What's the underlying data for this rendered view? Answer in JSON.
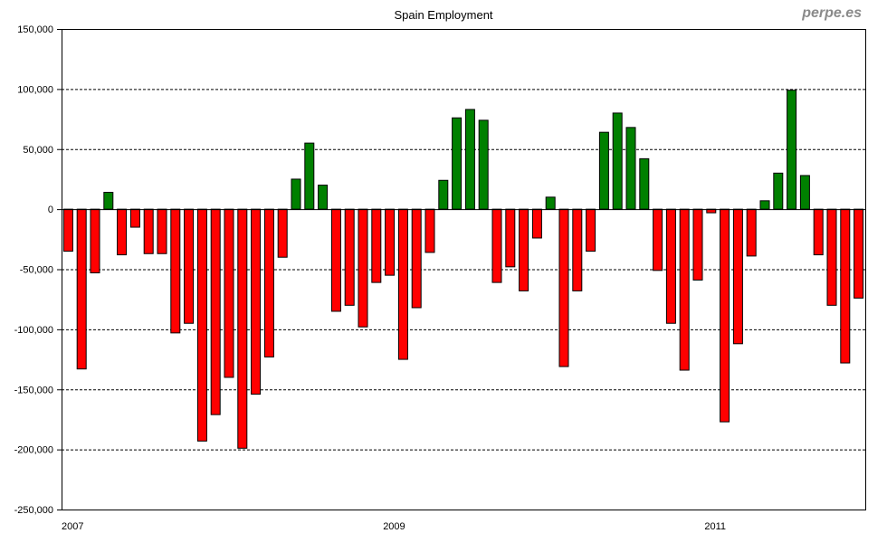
{
  "chart_data": {
    "type": "bar",
    "title": "Spain Employment",
    "watermark": "perpe.es",
    "xlabel": "",
    "ylabel": "",
    "ylim": [
      -250000,
      150000
    ],
    "yticks": [
      150000,
      100000,
      50000,
      0,
      -50000,
      -100000,
      -150000,
      -200000,
      -250000
    ],
    "ytick_labels": [
      "150,000",
      "100,000",
      "50,000",
      "0",
      "-50,000",
      "-100,000",
      "-150,000",
      "-200,000",
      "-250,000"
    ],
    "xtick_labels": [
      {
        "label": "2007",
        "index": 0
      },
      {
        "label": "2009",
        "index": 24
      },
      {
        "label": "2011",
        "index": 48
      }
    ],
    "grid": "horizontal dashed",
    "positive_color": "#008000",
    "negative_color": "#ff0000",
    "values": [
      -35000,
      -133000,
      -53000,
      14000,
      -38000,
      -15000,
      -37000,
      -37000,
      -103000,
      -95000,
      -193000,
      -171000,
      -140000,
      -199000,
      -154000,
      -123000,
      -40000,
      25000,
      55000,
      20000,
      -85000,
      -80000,
      -98000,
      -61000,
      -55000,
      -125000,
      -82000,
      -36000,
      24000,
      76000,
      83000,
      74000,
      -61000,
      -48000,
      -68000,
      -24000,
      10000,
      -131000,
      -68000,
      -35000,
      64000,
      80000,
      68000,
      42000,
      -51000,
      -95000,
      -134000,
      -59000,
      -3000,
      -177000,
      -112000,
      -39000,
      7000,
      30000,
      99000,
      28000,
      -38000,
      -80000,
      -128000,
      -74000
    ]
  }
}
